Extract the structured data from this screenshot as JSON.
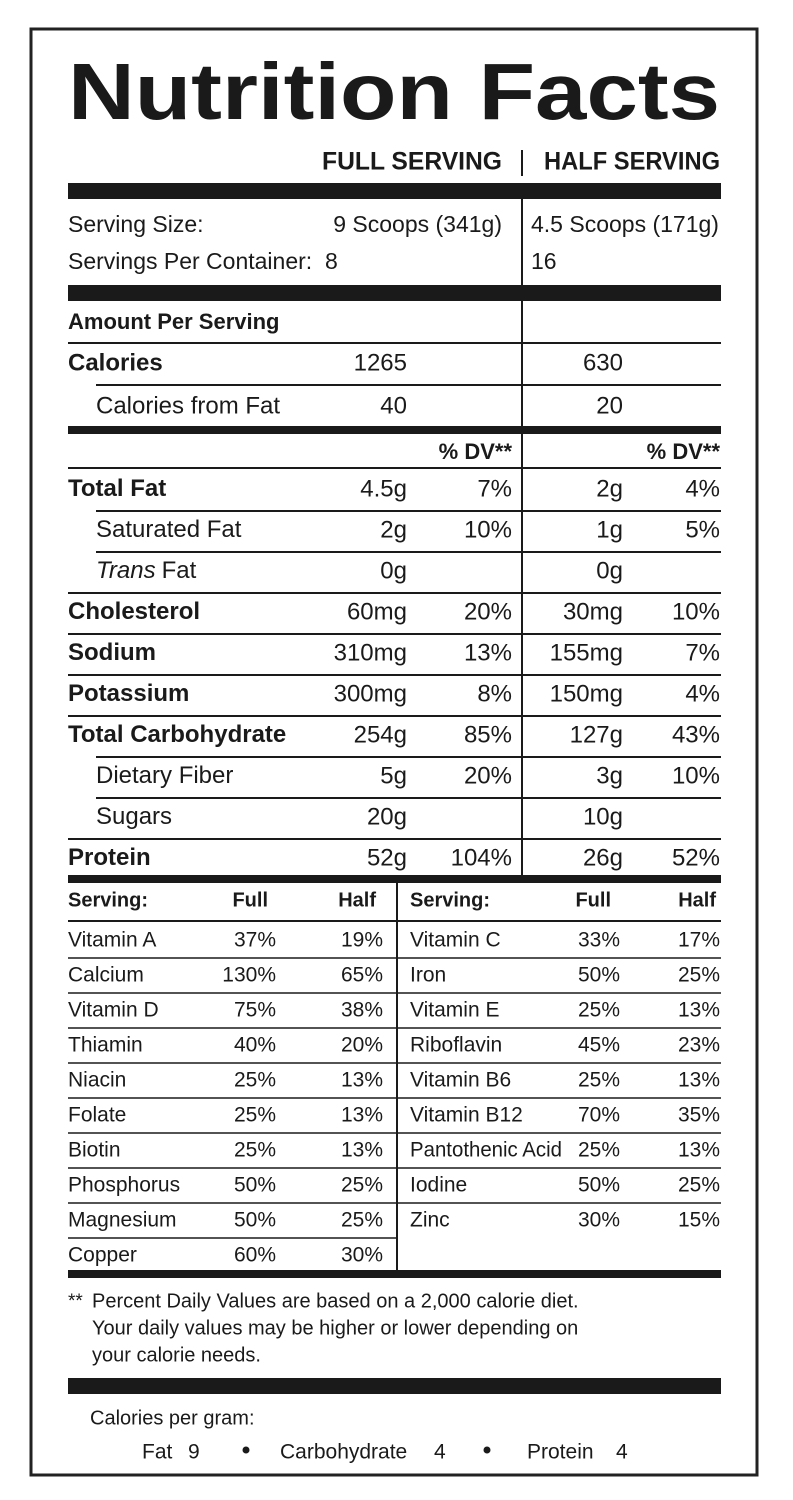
{
  "title": "Nutrition Facts",
  "columns": {
    "full": "FULL SERVING",
    "half": "HALF SERVING"
  },
  "serving": {
    "size_label": "Serving Size:",
    "size_full": "9 Scoops (341g)",
    "size_half": "4.5 Scoops (171g)",
    "per_container_label": "Servings Per Container:",
    "per_container_full": 8,
    "per_container_half": 16
  },
  "amount_per_serving": "Amount Per Serving",
  "calories": {
    "label": "Calories",
    "full": 1265,
    "half": 630
  },
  "calories_from_fat": {
    "label": "Calories from Fat",
    "full": 40,
    "half": 20
  },
  "dv_header": "% DV**",
  "nutrients": [
    {
      "label": "Total Fat",
      "full_amount": "4.5g",
      "full_dv": "7%",
      "half_amount": "2g",
      "half_dv": "4%"
    },
    {
      "label": "Saturated Fat",
      "indent": true,
      "full_amount": "2g",
      "full_dv": "10%",
      "half_amount": "1g",
      "half_dv": "5%"
    },
    {
      "label_italic": "Trans",
      "label": "Fat",
      "indent": true,
      "full_amount": "0g",
      "half_amount": "0g"
    },
    {
      "label": "Cholesterol",
      "full_amount": "60mg",
      "full_dv": "20%",
      "half_amount": "30mg",
      "half_dv": "10%"
    },
    {
      "label": "Sodium",
      "full_amount": "310mg",
      "full_dv": "13%",
      "half_amount": "155mg",
      "half_dv": "7%"
    },
    {
      "label": "Potassium",
      "full_amount": "300mg",
      "full_dv": "8%",
      "half_amount": "150mg",
      "half_dv": "4%"
    },
    {
      "label": "Total Carbohydrate",
      "full_amount": "254g",
      "full_dv": "85%",
      "half_amount": "127g",
      "half_dv": "43%"
    },
    {
      "label": "Dietary Fiber",
      "indent": true,
      "full_amount": "5g",
      "full_dv": "20%",
      "half_amount": "3g",
      "half_dv": "10%"
    },
    {
      "label": "Sugars",
      "indent": true,
      "full_amount": "20g",
      "half_amount": "10g"
    },
    {
      "label": "Protein",
      "full_amount": "52g",
      "full_dv": "104%",
      "half_amount": "26g",
      "half_dv": "52%"
    }
  ],
  "vitamins": {
    "header": {
      "serving": "Serving:",
      "full": "Full",
      "half": "Half"
    },
    "left": [
      {
        "name": "Vitamin A",
        "full": "37%",
        "half": "19%"
      },
      {
        "name": "Calcium",
        "full": "130%",
        "half": "65%"
      },
      {
        "name": "Vitamin D",
        "full": "75%",
        "half": "38%"
      },
      {
        "name": "Thiamin",
        "full": "40%",
        "half": "20%"
      },
      {
        "name": "Niacin",
        "full": "25%",
        "half": "13%"
      },
      {
        "name": "Folate",
        "full": "25%",
        "half": "13%"
      },
      {
        "name": "Biotin",
        "full": "25%",
        "half": "13%"
      },
      {
        "name": "Phosphorus",
        "full": "50%",
        "half": "25%"
      },
      {
        "name": "Magnesium",
        "full": "50%",
        "half": "25%"
      },
      {
        "name": "Copper",
        "full": "60%",
        "half": "30%"
      }
    ],
    "right": [
      {
        "name": "Vitamin C",
        "full": "33%",
        "half": "17%"
      },
      {
        "name": "Iron",
        "full": "50%",
        "half": "25%"
      },
      {
        "name": "Vitamin E",
        "full": "25%",
        "half": "13%"
      },
      {
        "name": "Riboflavin",
        "full": "45%",
        "half": "23%"
      },
      {
        "name": "Vitamin B6",
        "full": "25%",
        "half": "13%"
      },
      {
        "name": "Vitamin B12",
        "full": "70%",
        "half": "35%"
      },
      {
        "name": "Pantothenic Acid",
        "full": "25%",
        "half": "13%"
      },
      {
        "name": "Iodine",
        "full": "50%",
        "half": "25%"
      },
      {
        "name": "Zinc",
        "full": "30%",
        "half": "15%"
      }
    ]
  },
  "footnote": {
    "marker": "**",
    "lines": [
      "Percent Daily Values are based on a 2,000 calorie diet.",
      "Your daily values may be higher or lower depending on",
      "your calorie needs."
    ]
  },
  "calories_per_gram": {
    "label": "Calories per gram:",
    "items": [
      {
        "name": "Fat",
        "value": 9
      },
      {
        "name": "Carbohydrate",
        "value": 4
      },
      {
        "name": "Protein",
        "value": 4
      }
    ]
  }
}
